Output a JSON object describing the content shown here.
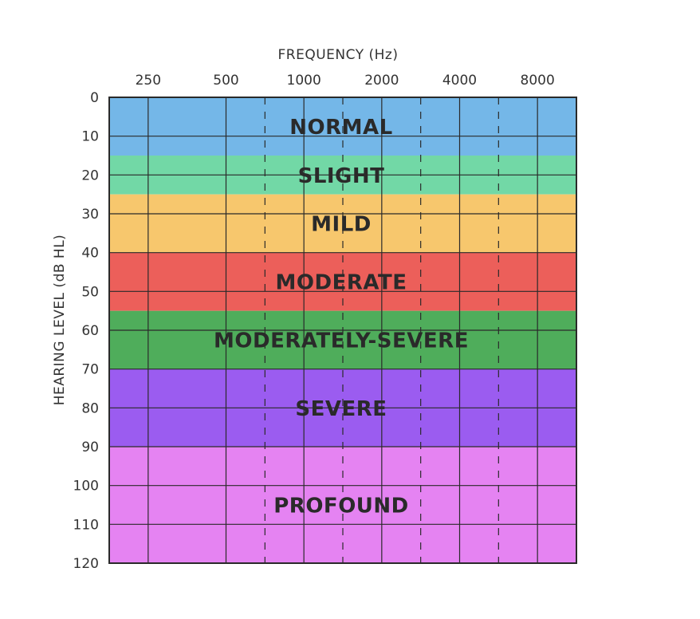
{
  "chart_data": {
    "type": "heatmap",
    "xlabel": "FREQUENCY (Hz)",
    "ylabel": "HEARING LEVEL (dB HL)",
    "x_ticks": [
      "250",
      "500",
      "1000",
      "2000",
      "4000",
      "8000"
    ],
    "y_ticks": [
      "0",
      "10",
      "20",
      "30",
      "40",
      "50",
      "60",
      "70",
      "80",
      "90",
      "100",
      "110",
      "120"
    ],
    "ylim": [
      0,
      120
    ],
    "y_inverted": true,
    "grid": true,
    "bands": [
      {
        "label": "NORMAL",
        "from": 0,
        "to": 15,
        "color": "#74b7e8"
      },
      {
        "label": "SLIGHT",
        "from": 15,
        "to": 25,
        "color": "#72d8a6"
      },
      {
        "label": "MILD",
        "from": 25,
        "to": 40,
        "color": "#f7c76d"
      },
      {
        "label": "MODERATE",
        "from": 40,
        "to": 55,
        "color": "#ec5f5a"
      },
      {
        "label": "MODERATELY-SEVERE",
        "from": 55,
        "to": 70,
        "color": "#4fad5b"
      },
      {
        "label": "SEVERE",
        "from": 70,
        "to": 90,
        "color": "#9b5cf0"
      },
      {
        "label": "PROFOUND",
        "from": 90,
        "to": 120,
        "color": "#e583f2"
      }
    ]
  }
}
